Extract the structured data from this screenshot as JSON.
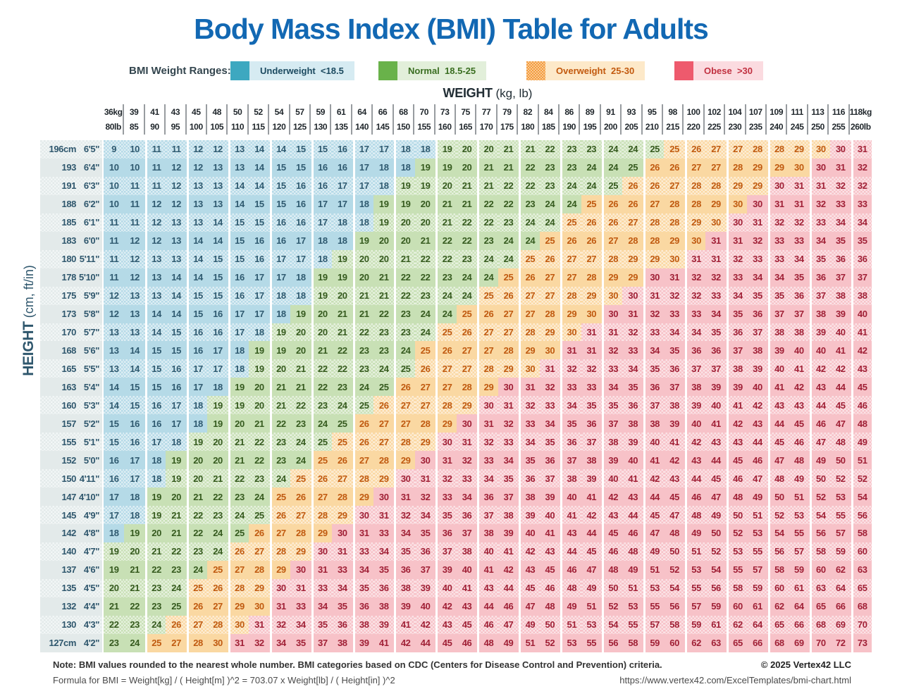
{
  "title": "Body Mass Index (BMI) Table for Adults",
  "legend": {
    "label": "BMI Weight Ranges:",
    "items": [
      {
        "id": "underweight",
        "name": "Underweight",
        "range": "<18.5",
        "swatch": "#3DA8C0",
        "tag_bg": "#D6EBF2",
        "tag_text": "#1C4A60",
        "dotted": false
      },
      {
        "id": "normal",
        "name": "Normal",
        "range": "18.5-25",
        "swatch": "#69B24A",
        "tag_bg": "#E2EFDA",
        "tag_text": "#3A6E21",
        "dotted": false
      },
      {
        "id": "overweight",
        "name": "Overweight",
        "range": "25-30",
        "swatch": "#F49C3D",
        "tag_bg": "#FDE9C9",
        "tag_text": "#C2590E",
        "dotted": true
      },
      {
        "id": "obese",
        "name": "Obese",
        "range": ">30",
        "swatch": "#EE5A6D",
        "tag_bg": "#FBDBE0",
        "tag_text": "#C13040",
        "dotted": false
      }
    ]
  },
  "colors": {
    "title_text": "#1268B3",
    "categories": {
      "u": {
        "bg": "#B5DAE7",
        "text": "#2F5A70"
      },
      "n": {
        "bg": "#C8E0B5",
        "text": "#355A1E"
      },
      "o": {
        "bg": "#FAD8A2",
        "text": "#C05A10"
      },
      "r": {
        "bg": "#F7C2C8",
        "text": "#A02036"
      }
    },
    "height_col": {
      "bg": "#E3EAEA",
      "text": "#2F576D"
    }
  },
  "chart_data": {
    "type": "table",
    "title": "Body Mass Index (BMI) Table for Adults",
    "x_axis": {
      "label": "WEIGHT",
      "units": "(kg, lb)",
      "kg": [
        "36kg",
        "39",
        "41",
        "43",
        "45",
        "48",
        "50",
        "52",
        "54",
        "57",
        "59",
        "61",
        "64",
        "66",
        "68",
        "70",
        "73",
        "75",
        "77",
        "79",
        "82",
        "84",
        "86",
        "89",
        "91",
        "93",
        "95",
        "98",
        "100",
        "102",
        "104",
        "107",
        "109",
        "111",
        "113",
        "116",
        "118kg"
      ],
      "lb": [
        "80lb",
        "85",
        "90",
        "95",
        "100",
        "105",
        "110",
        "115",
        "120",
        "125",
        "130",
        "135",
        "140",
        "145",
        "150",
        "155",
        "160",
        "165",
        "170",
        "175",
        "180",
        "185",
        "190",
        "195",
        "200",
        "205",
        "210",
        "215",
        "220",
        "225",
        "230",
        "235",
        "240",
        "245",
        "250",
        "255",
        "260lb"
      ]
    },
    "y_axis": {
      "label": "HEIGHT",
      "units": "(cm, ft/in)",
      "rows": [
        {
          "cm": "196cm",
          "ftin": "6'5\""
        },
        {
          "cm": "193",
          "ftin": "6'4\""
        },
        {
          "cm": "191",
          "ftin": "6'3\""
        },
        {
          "cm": "188",
          "ftin": "6'2\""
        },
        {
          "cm": "185",
          "ftin": "6'1\""
        },
        {
          "cm": "183",
          "ftin": "6'0\""
        },
        {
          "cm": "180",
          "ftin": "5'11\""
        },
        {
          "cm": "178",
          "ftin": "5'10\""
        },
        {
          "cm": "175",
          "ftin": "5'9\""
        },
        {
          "cm": "173",
          "ftin": "5'8\""
        },
        {
          "cm": "170",
          "ftin": "5'7\""
        },
        {
          "cm": "168",
          "ftin": "5'6\""
        },
        {
          "cm": "165",
          "ftin": "5'5\""
        },
        {
          "cm": "163",
          "ftin": "5'4\""
        },
        {
          "cm": "160",
          "ftin": "5'3\""
        },
        {
          "cm": "157",
          "ftin": "5'2\""
        },
        {
          "cm": "155",
          "ftin": "5'1\""
        },
        {
          "cm": "152",
          "ftin": "5'0\""
        },
        {
          "cm": "150",
          "ftin": "4'11\""
        },
        {
          "cm": "147",
          "ftin": "4'10\""
        },
        {
          "cm": "145",
          "ftin": "4'9\""
        },
        {
          "cm": "142",
          "ftin": "4'8\""
        },
        {
          "cm": "140",
          "ftin": "4'7\""
        },
        {
          "cm": "137",
          "ftin": "4'6\""
        },
        {
          "cm": "135",
          "ftin": "4'5\""
        },
        {
          "cm": "132",
          "ftin": "4'4\""
        },
        {
          "cm": "130",
          "ftin": "4'3\""
        },
        {
          "cm": "127cm",
          "ftin": "4'2\""
        }
      ]
    },
    "legend": [
      "Underweight <18.5",
      "Normal 18.5-25",
      "Overweight 25-30",
      "Obese >30"
    ],
    "values": [
      [
        9,
        10,
        11,
        11,
        12,
        12,
        13,
        14,
        14,
        15,
        15,
        16,
        17,
        17,
        18,
        18,
        19,
        20,
        20,
        21,
        21,
        22,
        23,
        23,
        24,
        24,
        25,
        25,
        26,
        27,
        27,
        28,
        28,
        29,
        30,
        30,
        31
      ],
      [
        10,
        10,
        11,
        12,
        12,
        13,
        13,
        14,
        15,
        15,
        16,
        16,
        17,
        18,
        18,
        19,
        19,
        20,
        21,
        21,
        22,
        23,
        23,
        24,
        24,
        25,
        26,
        26,
        27,
        27,
        28,
        29,
        29,
        30,
        30,
        31,
        32
      ],
      [
        10,
        11,
        11,
        12,
        13,
        13,
        14,
        14,
        15,
        16,
        16,
        17,
        17,
        18,
        19,
        19,
        20,
        21,
        21,
        22,
        22,
        23,
        24,
        24,
        25,
        26,
        26,
        27,
        28,
        28,
        29,
        29,
        30,
        31,
        31,
        32,
        32
      ],
      [
        10,
        11,
        12,
        12,
        13,
        13,
        14,
        15,
        15,
        16,
        17,
        17,
        18,
        19,
        19,
        20,
        21,
        21,
        22,
        22,
        23,
        24,
        24,
        25,
        26,
        26,
        27,
        28,
        28,
        29,
        30,
        30,
        31,
        31,
        32,
        33,
        33
      ],
      [
        11,
        11,
        12,
        13,
        13,
        14,
        15,
        15,
        16,
        16,
        17,
        18,
        18,
        19,
        20,
        20,
        21,
        22,
        22,
        23,
        24,
        24,
        25,
        26,
        26,
        27,
        28,
        28,
        29,
        30,
        30,
        31,
        32,
        32,
        33,
        34,
        34
      ],
      [
        11,
        12,
        12,
        13,
        14,
        14,
        15,
        16,
        16,
        17,
        18,
        18,
        19,
        20,
        20,
        21,
        22,
        22,
        23,
        24,
        24,
        25,
        26,
        26,
        27,
        28,
        28,
        29,
        30,
        31,
        31,
        32,
        33,
        33,
        34,
        35,
        35
      ],
      [
        11,
        12,
        13,
        13,
        14,
        15,
        15,
        16,
        17,
        17,
        18,
        19,
        20,
        20,
        21,
        22,
        22,
        23,
        24,
        24,
        25,
        26,
        27,
        27,
        28,
        29,
        29,
        30,
        31,
        31,
        32,
        33,
        33,
        34,
        35,
        36,
        36
      ],
      [
        11,
        12,
        13,
        14,
        14,
        15,
        16,
        17,
        17,
        18,
        19,
        19,
        20,
        21,
        22,
        22,
        23,
        24,
        24,
        25,
        26,
        27,
        27,
        28,
        29,
        29,
        30,
        31,
        32,
        32,
        33,
        34,
        34,
        35,
        36,
        37,
        37
      ],
      [
        12,
        13,
        13,
        14,
        15,
        15,
        16,
        17,
        18,
        18,
        19,
        20,
        21,
        21,
        22,
        23,
        24,
        24,
        25,
        26,
        27,
        27,
        28,
        29,
        30,
        30,
        31,
        32,
        32,
        33,
        34,
        35,
        35,
        36,
        37,
        38,
        38
      ],
      [
        12,
        13,
        14,
        14,
        15,
        16,
        17,
        17,
        18,
        19,
        20,
        21,
        21,
        22,
        23,
        24,
        24,
        25,
        26,
        27,
        27,
        28,
        29,
        30,
        30,
        31,
        32,
        33,
        33,
        34,
        35,
        36,
        37,
        37,
        38,
        39,
        40
      ],
      [
        13,
        13,
        14,
        15,
        16,
        16,
        17,
        18,
        19,
        20,
        20,
        21,
        22,
        23,
        23,
        24,
        25,
        26,
        27,
        27,
        28,
        29,
        30,
        31,
        31,
        32,
        33,
        34,
        34,
        35,
        36,
        37,
        38,
        38,
        39,
        40,
        41
      ],
      [
        13,
        14,
        15,
        15,
        16,
        17,
        18,
        19,
        19,
        20,
        21,
        22,
        23,
        23,
        24,
        25,
        26,
        27,
        27,
        28,
        29,
        30,
        31,
        31,
        32,
        33,
        34,
        35,
        36,
        36,
        37,
        38,
        39,
        40,
        40,
        41,
        42
      ],
      [
        13,
        14,
        15,
        16,
        17,
        17,
        18,
        19,
        20,
        21,
        22,
        22,
        23,
        24,
        25,
        26,
        27,
        27,
        28,
        29,
        30,
        31,
        32,
        32,
        33,
        34,
        35,
        36,
        37,
        37,
        38,
        39,
        40,
        41,
        42,
        42,
        43
      ],
      [
        14,
        15,
        15,
        16,
        17,
        18,
        19,
        20,
        21,
        21,
        22,
        23,
        24,
        25,
        26,
        27,
        27,
        28,
        29,
        30,
        31,
        32,
        33,
        33,
        34,
        35,
        36,
        37,
        38,
        39,
        39,
        40,
        41,
        42,
        43,
        44,
        45
      ],
      [
        14,
        15,
        16,
        17,
        18,
        19,
        19,
        20,
        21,
        22,
        23,
        24,
        25,
        26,
        27,
        27,
        28,
        29,
        30,
        31,
        32,
        33,
        34,
        35,
        35,
        36,
        37,
        38,
        39,
        40,
        41,
        42,
        43,
        43,
        44,
        45,
        46
      ],
      [
        15,
        16,
        16,
        17,
        18,
        19,
        20,
        21,
        22,
        23,
        24,
        25,
        26,
        27,
        27,
        28,
        29,
        30,
        31,
        32,
        33,
        34,
        35,
        36,
        37,
        38,
        38,
        39,
        40,
        41,
        42,
        43,
        44,
        45,
        46,
        47,
        48
      ],
      [
        15,
        16,
        17,
        18,
        19,
        20,
        21,
        22,
        23,
        24,
        25,
        25,
        26,
        27,
        28,
        29,
        30,
        31,
        32,
        33,
        34,
        35,
        36,
        37,
        38,
        39,
        40,
        41,
        42,
        43,
        43,
        44,
        45,
        46,
        47,
        48,
        49
      ],
      [
        16,
        17,
        18,
        19,
        20,
        20,
        21,
        22,
        23,
        24,
        25,
        26,
        27,
        28,
        29,
        30,
        31,
        32,
        33,
        34,
        35,
        36,
        37,
        38,
        39,
        40,
        41,
        42,
        43,
        44,
        45,
        46,
        47,
        48,
        49,
        50,
        51
      ],
      [
        16,
        17,
        18,
        19,
        20,
        21,
        22,
        23,
        24,
        25,
        26,
        27,
        28,
        29,
        30,
        31,
        32,
        33,
        34,
        35,
        36,
        37,
        38,
        39,
        40,
        41,
        42,
        43,
        44,
        45,
        46,
        47,
        48,
        49,
        50,
        52,
        52
      ],
      [
        17,
        18,
        19,
        20,
        21,
        22,
        23,
        24,
        25,
        26,
        27,
        28,
        29,
        30,
        31,
        32,
        33,
        34,
        36,
        37,
        38,
        39,
        40,
        41,
        42,
        43,
        44,
        45,
        46,
        47,
        48,
        49,
        50,
        51,
        52,
        53,
        54
      ],
      [
        17,
        18,
        19,
        21,
        22,
        23,
        24,
        25,
        26,
        27,
        28,
        29,
        30,
        31,
        32,
        34,
        35,
        36,
        37,
        38,
        39,
        40,
        41,
        42,
        43,
        44,
        45,
        47,
        48,
        49,
        50,
        51,
        52,
        53,
        54,
        55,
        56
      ],
      [
        18,
        19,
        20,
        21,
        22,
        24,
        25,
        26,
        27,
        28,
        29,
        30,
        31,
        33,
        34,
        35,
        36,
        37,
        38,
        39,
        40,
        41,
        43,
        44,
        45,
        46,
        47,
        48,
        49,
        50,
        52,
        53,
        54,
        55,
        56,
        57,
        58
      ],
      [
        19,
        20,
        21,
        22,
        23,
        24,
        26,
        27,
        28,
        29,
        30,
        31,
        33,
        34,
        35,
        36,
        37,
        38,
        40,
        41,
        42,
        43,
        44,
        45,
        46,
        48,
        49,
        50,
        51,
        52,
        53,
        55,
        56,
        57,
        58,
        59,
        60
      ],
      [
        19,
        21,
        22,
        23,
        24,
        25,
        27,
        28,
        29,
        30,
        31,
        33,
        34,
        35,
        36,
        37,
        39,
        40,
        41,
        42,
        43,
        45,
        46,
        47,
        48,
        49,
        51,
        52,
        53,
        54,
        55,
        57,
        58,
        59,
        60,
        62,
        63
      ],
      [
        20,
        21,
        23,
        24,
        25,
        26,
        28,
        29,
        30,
        31,
        33,
        34,
        35,
        36,
        38,
        39,
        40,
        41,
        43,
        44,
        45,
        46,
        48,
        49,
        50,
        51,
        53,
        54,
        55,
        56,
        58,
        59,
        60,
        61,
        63,
        64,
        65
      ],
      [
        21,
        22,
        23,
        25,
        26,
        27,
        29,
        30,
        31,
        33,
        34,
        35,
        36,
        38,
        39,
        40,
        42,
        43,
        44,
        46,
        47,
        48,
        49,
        51,
        52,
        53,
        55,
        56,
        57,
        59,
        60,
        61,
        62,
        64,
        65,
        66,
        68
      ],
      [
        22,
        23,
        24,
        26,
        27,
        28,
        30,
        31,
        32,
        34,
        35,
        36,
        38,
        39,
        41,
        42,
        43,
        45,
        46,
        47,
        49,
        50,
        51,
        53,
        54,
        55,
        57,
        58,
        59,
        61,
        62,
        64,
        65,
        66,
        68,
        69,
        70
      ],
      [
        23,
        24,
        25,
        27,
        28,
        30,
        31,
        32,
        34,
        35,
        37,
        38,
        39,
        41,
        42,
        44,
        45,
        46,
        48,
        49,
        51,
        52,
        53,
        55,
        56,
        58,
        59,
        60,
        62,
        63,
        65,
        66,
        68,
        69,
        70,
        72,
        73
      ]
    ],
    "cats": [
      "uuuuuuuuuuuuuuuunnnnnnnnnnnoooooooorr",
      "uuuuuuuuuuuuuuunnnnnnnnnnnoooooooorrr",
      "uuuuuuuuuuuuuunnnnnnnnnnnooooooorrrrr",
      "uuuuuuuuuuuuunnnnnnnnnnoooooooorrrrrr",
      "uuuuuuuuuuuuunnnnnnnnnoooooooorrrrrrr",
      "uuuuuuuuuuuunnnnnnnnnoooooooorrrrrrrr",
      "uuuuuuuuuuunnnnnnnnnoooooooorrrrrrrrr",
      "uuuuuuuuuunnnnnnnnnooooooorrrrrrrrrrr",
      "uuuuuuuuuunnnnnnnnooooooorrrrrrrrrrrr",
      "uuuuuuuuunnnnnnnnooooooorrrrrrrrrrrrr",
      "uuuuuuuunnnnnnnnooooooorrrrrrrrrrrrrr",
      "uuuuuuunnnnnnnnooooooorrrrrrrrrrrrrrr",
      "uuuuuuunnnnnnnnoooooorrrrrrrrrrrrrrrr",
      "uuuuuunnnnnnnnooooorrrrrrrrrrrrrrrrrr",
      "uuuuunnnnnnnnooooorrrrrrrrrrrrrrrrrrr",
      "uuuuunnnnnnnooooorrrrrrrrrrrrrrrrrrrr",
      "uuuunnnnnnnooooorrrrrrrrrrrrrrrrrrrrr",
      "uuunnnnnnnooooorrrrrrrrrrrrrrrrrrrrrr",
      "uuunnnnnnooooorrrrrrrrrrrrrrrrrrrrrrr",
      "uunnnnnnooooorrrrrrrrrrrrrrrrrrrrrrrr",
      "uunnnnnnoooorrrrrrrrrrrrrrrrrrrrrrrrr",
      "unnnnnnoooorrrrrrrrrrrrrrrrrrrrrrrrrr",
      "nnnnnnoooorrrrrrrrrrrrrrrrrrrrrrrrrrr",
      "nnnnnoooorrrrrrrrrrrrrrrrrrrrrrrrrrrr",
      "nnnnoooorrrrrrrrrrrrrrrrrrrrrrrrrrrrr",
      "nnnnoooorrrrrrrrrrrrrrrrrrrrrrrrrrrrr",
      "nnnoooorrrrrrrrrrrrrrrrrrrrrrrrrrrrrr",
      "nnoooorrrrrrrrrrrrrrrrrrrrrrrrrrrrrrr"
    ]
  },
  "footer": {
    "note": "Note: BMI values rounded to the nearest whole number. BMI categories based on CDC (Centers for Disease Control and Prevention) criteria.",
    "formula": "Formula for BMI = Weight[kg] / ( Height[m] )^2 = 703.07 x Weight[lb] / ( Height[in] )^2",
    "copyright": "© 2025 Vertex42 LLC",
    "url": "https://www.vertex42.com/ExcelTemplates/bmi-chart.html"
  }
}
